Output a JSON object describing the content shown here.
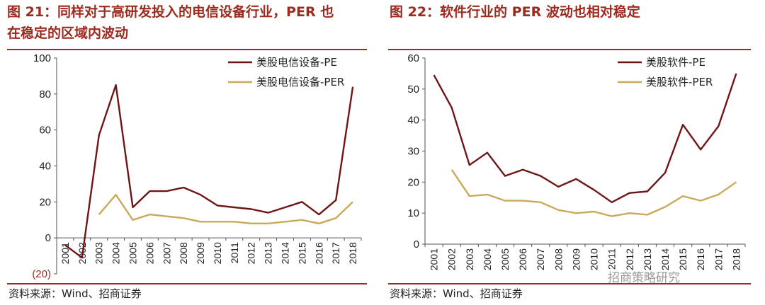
{
  "left_panel": {
    "title_line1": "图 21：同样对于高研发投入的电信设备行业，PER 也",
    "title_line2": "在稳定的区域内波动",
    "source": "资料来源：Wind、招商证券"
  },
  "right_panel": {
    "title": "图 22：软件行业的 PER 波动也相对稳定",
    "source": "资料来源：Wind、招商证券"
  },
  "watermark": "招商策略研究",
  "colors": {
    "accent": "#9c2a1e",
    "pe_line": "#6e1515",
    "per_line": "#c9a95a"
  },
  "chart_data": [
    {
      "type": "line",
      "categories": [
        "2001",
        "2002",
        "2003",
        "2004",
        "2005",
        "2006",
        "2007",
        "2008",
        "2009",
        "2010",
        "2011",
        "2012",
        "2013",
        "2014",
        "2015",
        "2016",
        "2017",
        "2018"
      ],
      "ylim": [
        -20,
        100
      ],
      "yticks": [
        -20,
        0,
        20,
        40,
        60,
        80,
        100
      ],
      "ytick_labels": [
        "(20)",
        "0",
        "20",
        "40",
        "60",
        "80",
        "100"
      ],
      "grid": false,
      "legend_position": "top-right",
      "series": [
        {
          "name": "美股电信设备-PE",
          "values": [
            -4,
            -11,
            57,
            85,
            17,
            26,
            26,
            28,
            24,
            18,
            17,
            16,
            14,
            17,
            20,
            13,
            21,
            84
          ]
        },
        {
          "name": "美股电信设备-PER",
          "values": [
            null,
            null,
            13,
            24,
            10,
            13,
            12,
            11,
            9,
            9,
            9,
            8,
            8,
            9,
            10,
            8,
            11,
            20
          ]
        }
      ]
    },
    {
      "type": "line",
      "categories": [
        "2001",
        "2002",
        "2003",
        "2004",
        "2005",
        "2006",
        "2007",
        "2008",
        "2009",
        "2010",
        "2011",
        "2012",
        "2013",
        "2014",
        "2015",
        "2016",
        "2017",
        "2018"
      ],
      "ylim": [
        0,
        60
      ],
      "yticks": [
        0,
        10,
        20,
        30,
        40,
        50,
        60
      ],
      "ytick_labels": [
        "0",
        "10",
        "20",
        "30",
        "40",
        "50",
        "60"
      ],
      "grid": false,
      "legend_position": "top-right",
      "series": [
        {
          "name": "美股软件-PE",
          "values": [
            54.5,
            44,
            25.5,
            29.5,
            22,
            24,
            22,
            18.5,
            21,
            17.5,
            13.5,
            16.5,
            17,
            23,
            38.5,
            30.5,
            38,
            55
          ]
        },
        {
          "name": "美股软件-PER",
          "values": [
            null,
            24,
            15.5,
            16,
            14,
            14,
            13.5,
            11,
            10,
            10.5,
            9,
            10,
            9.5,
            12,
            15.5,
            14,
            16,
            20
          ]
        }
      ]
    }
  ]
}
